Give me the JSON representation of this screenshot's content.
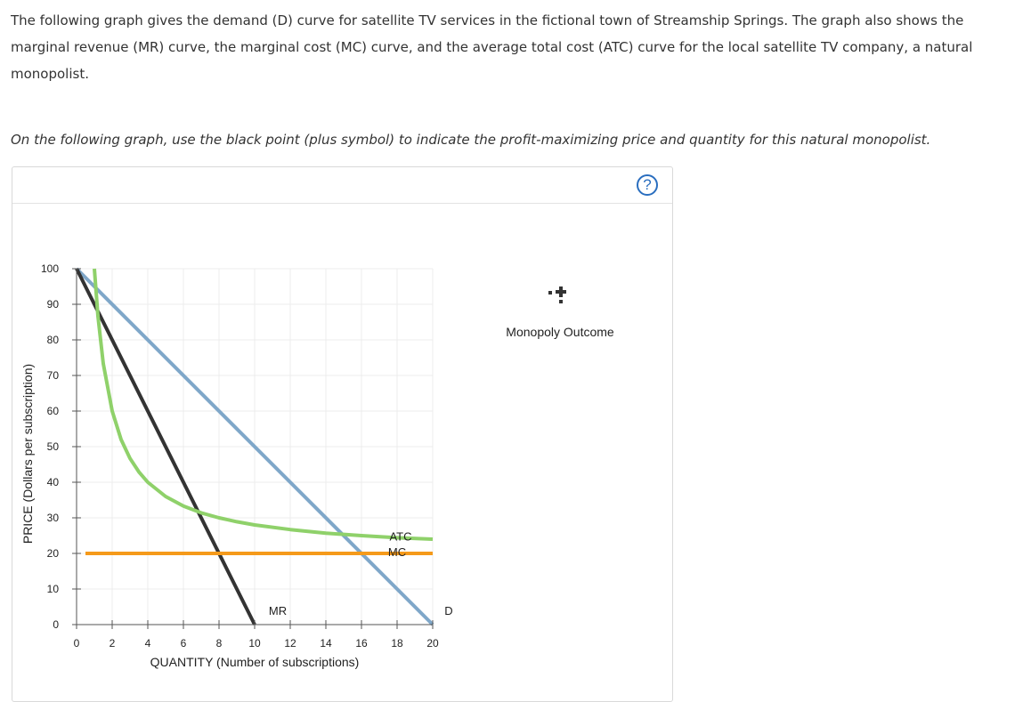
{
  "intro_text": "The following graph gives the demand (D) curve for satellite TV services in the fictional town of Streamship Springs. The graph also shows the marginal revenue (MR) curve, the marginal cost (MC) curve, and the average total cost (ATC) curve for the local satellite TV company, a natural monopolist.",
  "instruction_text": "On the following graph, use the black point (plus symbol) to indicate the profit-maximizing price and quantity for this natural monopolist.",
  "help_icon": "?",
  "legend": {
    "label": "Monopoly Outcome",
    "icon": "plus-point-icon",
    "color": "#333333"
  },
  "chart_data": {
    "type": "line",
    "xlabel": "QUANTITY (Number of subscriptions)",
    "ylabel": "PRICE (Dollars per subscription)",
    "xlim": [
      0,
      20
    ],
    "ylim": [
      0,
      100
    ],
    "xticks": [
      0,
      2,
      4,
      6,
      8,
      10,
      12,
      14,
      16,
      18,
      20
    ],
    "yticks": [
      0,
      10,
      20,
      30,
      40,
      50,
      60,
      70,
      80,
      90,
      100
    ],
    "grid": true,
    "series": [
      {
        "name": "D",
        "color": "#7fa7c9",
        "points": [
          [
            0,
            100
          ],
          [
            20,
            0
          ]
        ]
      },
      {
        "name": "MR",
        "color": "#333333",
        "points": [
          [
            0,
            100
          ],
          [
            10,
            0
          ]
        ]
      },
      {
        "name": "MC",
        "color": "#f59a1a",
        "points": [
          [
            0.5,
            20
          ],
          [
            20,
            20
          ]
        ]
      },
      {
        "name": "ATC",
        "color": "#8fd16a",
        "points": [
          [
            1,
            100
          ],
          [
            1.2,
            86.7
          ],
          [
            1.5,
            73.3
          ],
          [
            2,
            60
          ],
          [
            2.5,
            52
          ],
          [
            3,
            46.7
          ],
          [
            3.5,
            42.9
          ],
          [
            4,
            40
          ],
          [
            5,
            36
          ],
          [
            6,
            33.3
          ],
          [
            7,
            31.4
          ],
          [
            8,
            30
          ],
          [
            9,
            28.9
          ],
          [
            10,
            28
          ],
          [
            12,
            26.7
          ],
          [
            14,
            25.7
          ],
          [
            16,
            25
          ],
          [
            18,
            24.4
          ],
          [
            20,
            24
          ]
        ]
      }
    ]
  }
}
